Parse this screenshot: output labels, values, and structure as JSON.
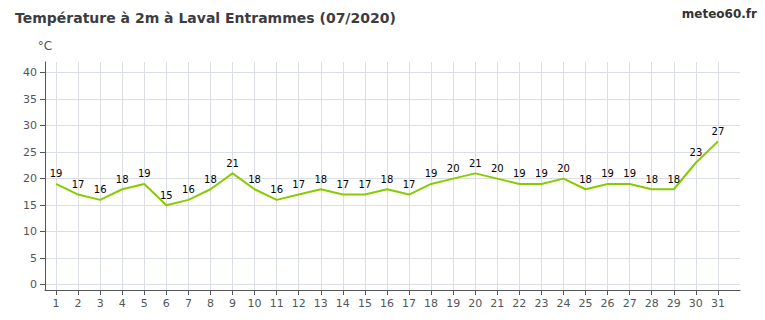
{
  "chart_data": {
    "type": "line",
    "title": "Température à 2m à Laval Entrammes (07/2020)",
    "ylabel": "°C",
    "annotations": [
      "meteo60.fr"
    ],
    "x": [
      1,
      2,
      3,
      4,
      5,
      6,
      7,
      8,
      9,
      10,
      11,
      12,
      13,
      14,
      15,
      16,
      17,
      18,
      19,
      20,
      21,
      22,
      23,
      24,
      25,
      26,
      27,
      28,
      29,
      30,
      31
    ],
    "values": [
      19,
      17,
      16,
      18,
      19,
      15,
      16,
      18,
      21,
      18,
      16,
      17,
      18,
      17,
      17,
      18,
      17,
      19,
      20,
      21,
      20,
      19,
      19,
      20,
      18,
      19,
      19,
      18,
      18,
      23,
      27
    ],
    "color": "#88cc00",
    "xlim": [
      0.5,
      32.0
    ],
    "ylim": [
      -1.0,
      42
    ],
    "xticks": [
      1,
      2,
      3,
      4,
      5,
      6,
      7,
      8,
      9,
      10,
      11,
      12,
      13,
      14,
      15,
      16,
      17,
      18,
      19,
      20,
      21,
      22,
      23,
      24,
      25,
      26,
      27,
      28,
      29,
      30,
      31
    ],
    "yticks": [
      0,
      5,
      10,
      15,
      20,
      25,
      30,
      35,
      40
    ],
    "grid": true,
    "data_labels": true
  }
}
